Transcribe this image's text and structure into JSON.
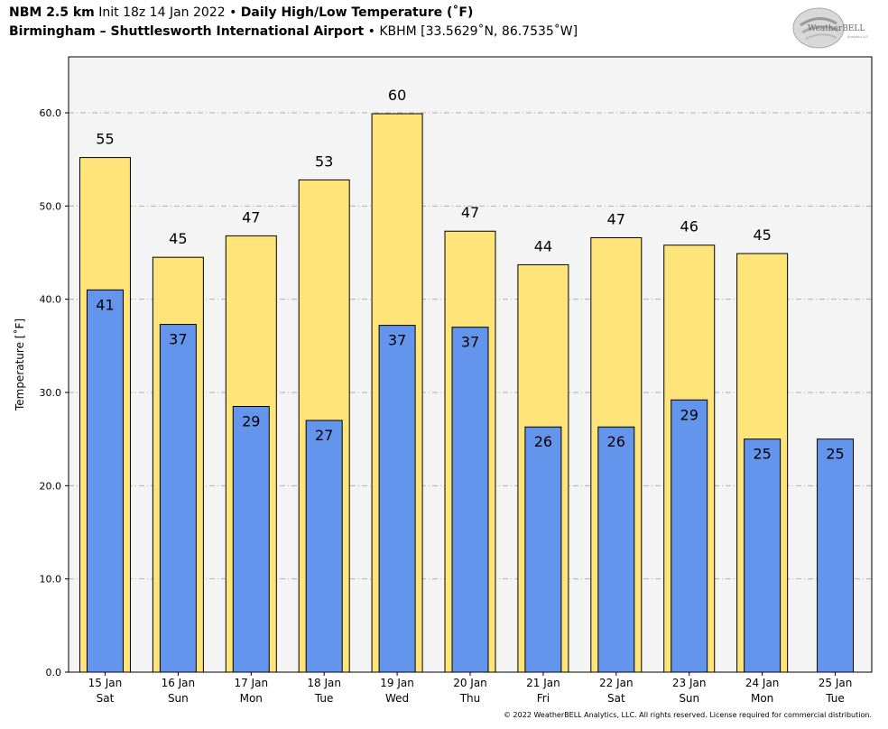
{
  "header": {
    "model": "NBM 2.5 km",
    "init": "Init 18z 14 Jan 2022",
    "sep": "•",
    "product": "Daily High/Low Temperature (˚F)",
    "station": "Birmingham – Shuttlesworth International Airport",
    "station_info": "KBHM [33.5629˚N, 86.7535˚W]"
  },
  "logo": {
    "text": "WeatherBELL",
    "sub": "Analytics LLC"
  },
  "footer": {
    "copyright": "© 2022 WeatherBELL Analytics, LLC. All rights reserved. License required for commercial distribution."
  },
  "colors": {
    "high": "#ffe479",
    "low": "#6495ed",
    "plot_bg": "#f4f4f4",
    "grid": "#b0b0b0"
  },
  "chart_data": {
    "type": "bar",
    "ylabel": "Temperature [˚F]",
    "xlabel": "",
    "ylim": [
      0,
      66
    ],
    "yticks": [
      "0.0",
      "10.0",
      "20.0",
      "30.0",
      "40.0",
      "50.0",
      "60.0"
    ],
    "grid": true,
    "categories": [
      {
        "date": "15 Jan",
        "day": "Sat"
      },
      {
        "date": "16 Jan",
        "day": "Sun"
      },
      {
        "date": "17 Jan",
        "day": "Mon"
      },
      {
        "date": "18 Jan",
        "day": "Tue"
      },
      {
        "date": "19 Jan",
        "day": "Wed"
      },
      {
        "date": "20 Jan",
        "day": "Thu"
      },
      {
        "date": "21 Jan",
        "day": "Fri"
      },
      {
        "date": "22 Jan",
        "day": "Sat"
      },
      {
        "date": "23 Jan",
        "day": "Sun"
      },
      {
        "date": "24 Jan",
        "day": "Mon"
      },
      {
        "date": "25 Jan",
        "day": "Tue"
      }
    ],
    "series": [
      {
        "values": [
          55.2,
          44.5,
          46.8,
          52.8,
          59.9,
          47.3,
          43.7,
          46.6,
          45.8,
          44.9,
          null
        ],
        "labels": [
          "55",
          "45",
          "47",
          "53",
          "60",
          "47",
          "44",
          "47",
          "46",
          "45",
          ""
        ]
      },
      {
        "values": [
          41.0,
          37.3,
          28.5,
          27.0,
          37.2,
          37.0,
          26.3,
          26.3,
          29.2,
          25.0,
          25.0
        ],
        "labels": [
          "41",
          "37",
          "29",
          "27",
          "37",
          "37",
          "26",
          "26",
          "29",
          "25",
          "25"
        ]
      }
    ]
  }
}
